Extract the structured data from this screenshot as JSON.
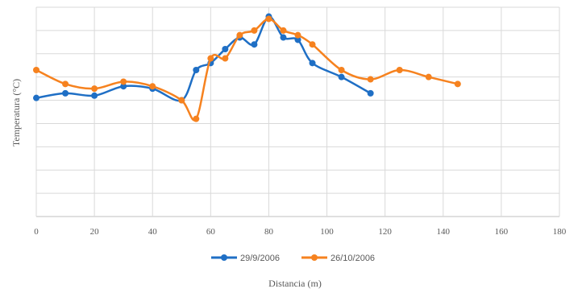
{
  "chart_data": {
    "type": "line",
    "title": "",
    "xlabel": "Distancia (m)",
    "ylabel": "Temperatura (°C)",
    "xlim": [
      0,
      180
    ],
    "xticks": [
      0,
      20,
      40,
      60,
      80,
      100,
      120,
      140,
      160,
      180
    ],
    "ylim": [
      0,
      9
    ],
    "grid": true,
    "legend": "bottom",
    "series": [
      {
        "name": "29/9/2006",
        "color": "#1F6FC5",
        "x": [
          0,
          10,
          20,
          30,
          40,
          50,
          55,
          60,
          65,
          70,
          75,
          80,
          85,
          90,
          95,
          105,
          115
        ],
        "y": [
          5.1,
          5.3,
          5.2,
          5.6,
          5.5,
          5.0,
          6.3,
          6.6,
          7.2,
          7.7,
          7.4,
          8.6,
          7.7,
          7.6,
          6.6,
          6.0,
          5.3
        ]
      },
      {
        "name": "26/10/2006",
        "color": "#F6821F",
        "x": [
          0,
          10,
          20,
          30,
          40,
          50,
          55,
          60,
          65,
          70,
          75,
          80,
          85,
          90,
          95,
          105,
          115,
          125,
          135,
          145
        ],
        "y": [
          6.3,
          5.7,
          5.5,
          5.8,
          5.6,
          5.0,
          4.2,
          6.8,
          6.8,
          7.8,
          8.0,
          8.5,
          8.0,
          7.8,
          7.4,
          6.3,
          5.9,
          6.3,
          6.0,
          5.7
        ]
      }
    ]
  }
}
